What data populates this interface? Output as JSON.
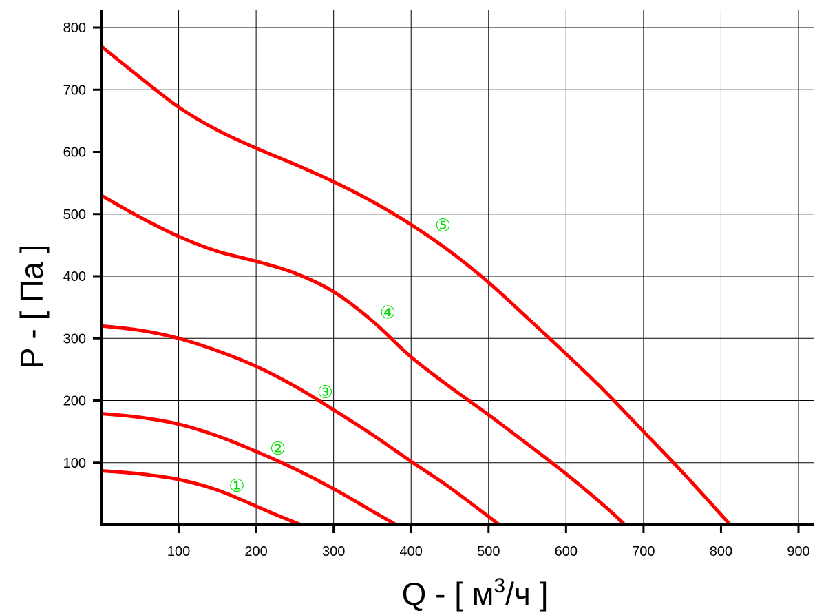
{
  "chart_data": {
    "type": "line",
    "title": "",
    "xlabel": {
      "prefix": "Q - [ м",
      "sup": "3",
      "suffix": "/ч ]"
    },
    "ylabel": "P - [ Па ]",
    "xlim": [
      0,
      900
    ],
    "ylim": [
      0,
      800
    ],
    "x_ticks": [
      100,
      200,
      300,
      400,
      500,
      600,
      700,
      800,
      900
    ],
    "y_ticks": [
      100,
      200,
      300,
      400,
      500,
      600,
      700,
      800
    ],
    "grid": true,
    "line_color": "#ff0000",
    "label_color": "#00dd00",
    "series": [
      {
        "label": "①",
        "label_at": [
          175,
          63
        ],
        "points": [
          [
            0,
            87
          ],
          [
            50,
            82
          ],
          [
            100,
            73
          ],
          [
            150,
            56
          ],
          [
            200,
            30
          ],
          [
            230,
            14
          ],
          [
            258,
            0
          ]
        ]
      },
      {
        "label": "②",
        "label_at": [
          228,
          123
        ],
        "points": [
          [
            0,
            179
          ],
          [
            50,
            173
          ],
          [
            100,
            162
          ],
          [
            150,
            143
          ],
          [
            200,
            118
          ],
          [
            250,
            90
          ],
          [
            300,
            58
          ],
          [
            350,
            22
          ],
          [
            381,
            0
          ]
        ]
      },
      {
        "label": "③",
        "label_at": [
          289,
          214
        ],
        "points": [
          [
            0,
            320
          ],
          [
            50,
            313
          ],
          [
            100,
            300
          ],
          [
            150,
            280
          ],
          [
            200,
            255
          ],
          [
            250,
            223
          ],
          [
            300,
            185
          ],
          [
            350,
            145
          ],
          [
            400,
            102
          ],
          [
            450,
            60
          ],
          [
            514,
            0
          ]
        ]
      },
      {
        "label": "④",
        "label_at": [
          370,
          342
        ],
        "points": [
          [
            0,
            530
          ],
          [
            50,
            495
          ],
          [
            100,
            464
          ],
          [
            150,
            440
          ],
          [
            200,
            424
          ],
          [
            250,
            405
          ],
          [
            300,
            375
          ],
          [
            350,
            328
          ],
          [
            400,
            270
          ],
          [
            450,
            222
          ],
          [
            500,
            177
          ],
          [
            550,
            130
          ],
          [
            600,
            82
          ],
          [
            650,
            30
          ],
          [
            676,
            0
          ]
        ]
      },
      {
        "label": "⑤",
        "label_at": [
          441,
          482
        ],
        "points": [
          [
            0,
            770
          ],
          [
            50,
            720
          ],
          [
            100,
            672
          ],
          [
            150,
            635
          ],
          [
            200,
            606
          ],
          [
            250,
            580
          ],
          [
            300,
            552
          ],
          [
            350,
            520
          ],
          [
            400,
            483
          ],
          [
            450,
            440
          ],
          [
            500,
            390
          ],
          [
            550,
            333
          ],
          [
            600,
            275
          ],
          [
            650,
            215
          ],
          [
            700,
            150
          ],
          [
            750,
            85
          ],
          [
            812,
            0
          ]
        ]
      }
    ]
  }
}
